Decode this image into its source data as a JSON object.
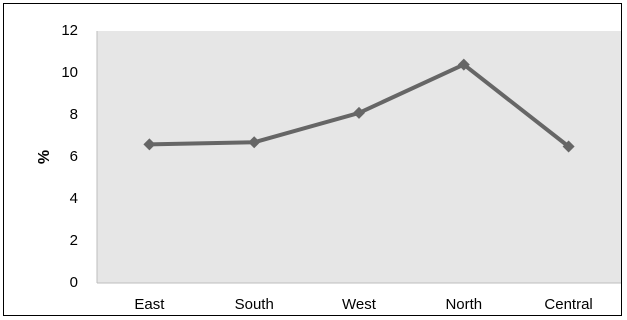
{
  "chart_data": {
    "type": "line",
    "categories": [
      "East",
      "South",
      "West",
      "North",
      "Central"
    ],
    "series": [
      {
        "values": [
          6.6,
          6.7,
          8.1,
          10.4,
          6.5
        ],
        "color": "#666666"
      }
    ],
    "title": "",
    "xlabel": "",
    "ylabel": "%",
    "ylim": [
      0,
      12
    ],
    "yticks": [
      "0",
      "2",
      "4",
      "6",
      "8",
      "10",
      "12"
    ],
    "grid": false,
    "legend": "none",
    "marker": "diamond",
    "plot_background": "#e6e6e6"
  }
}
